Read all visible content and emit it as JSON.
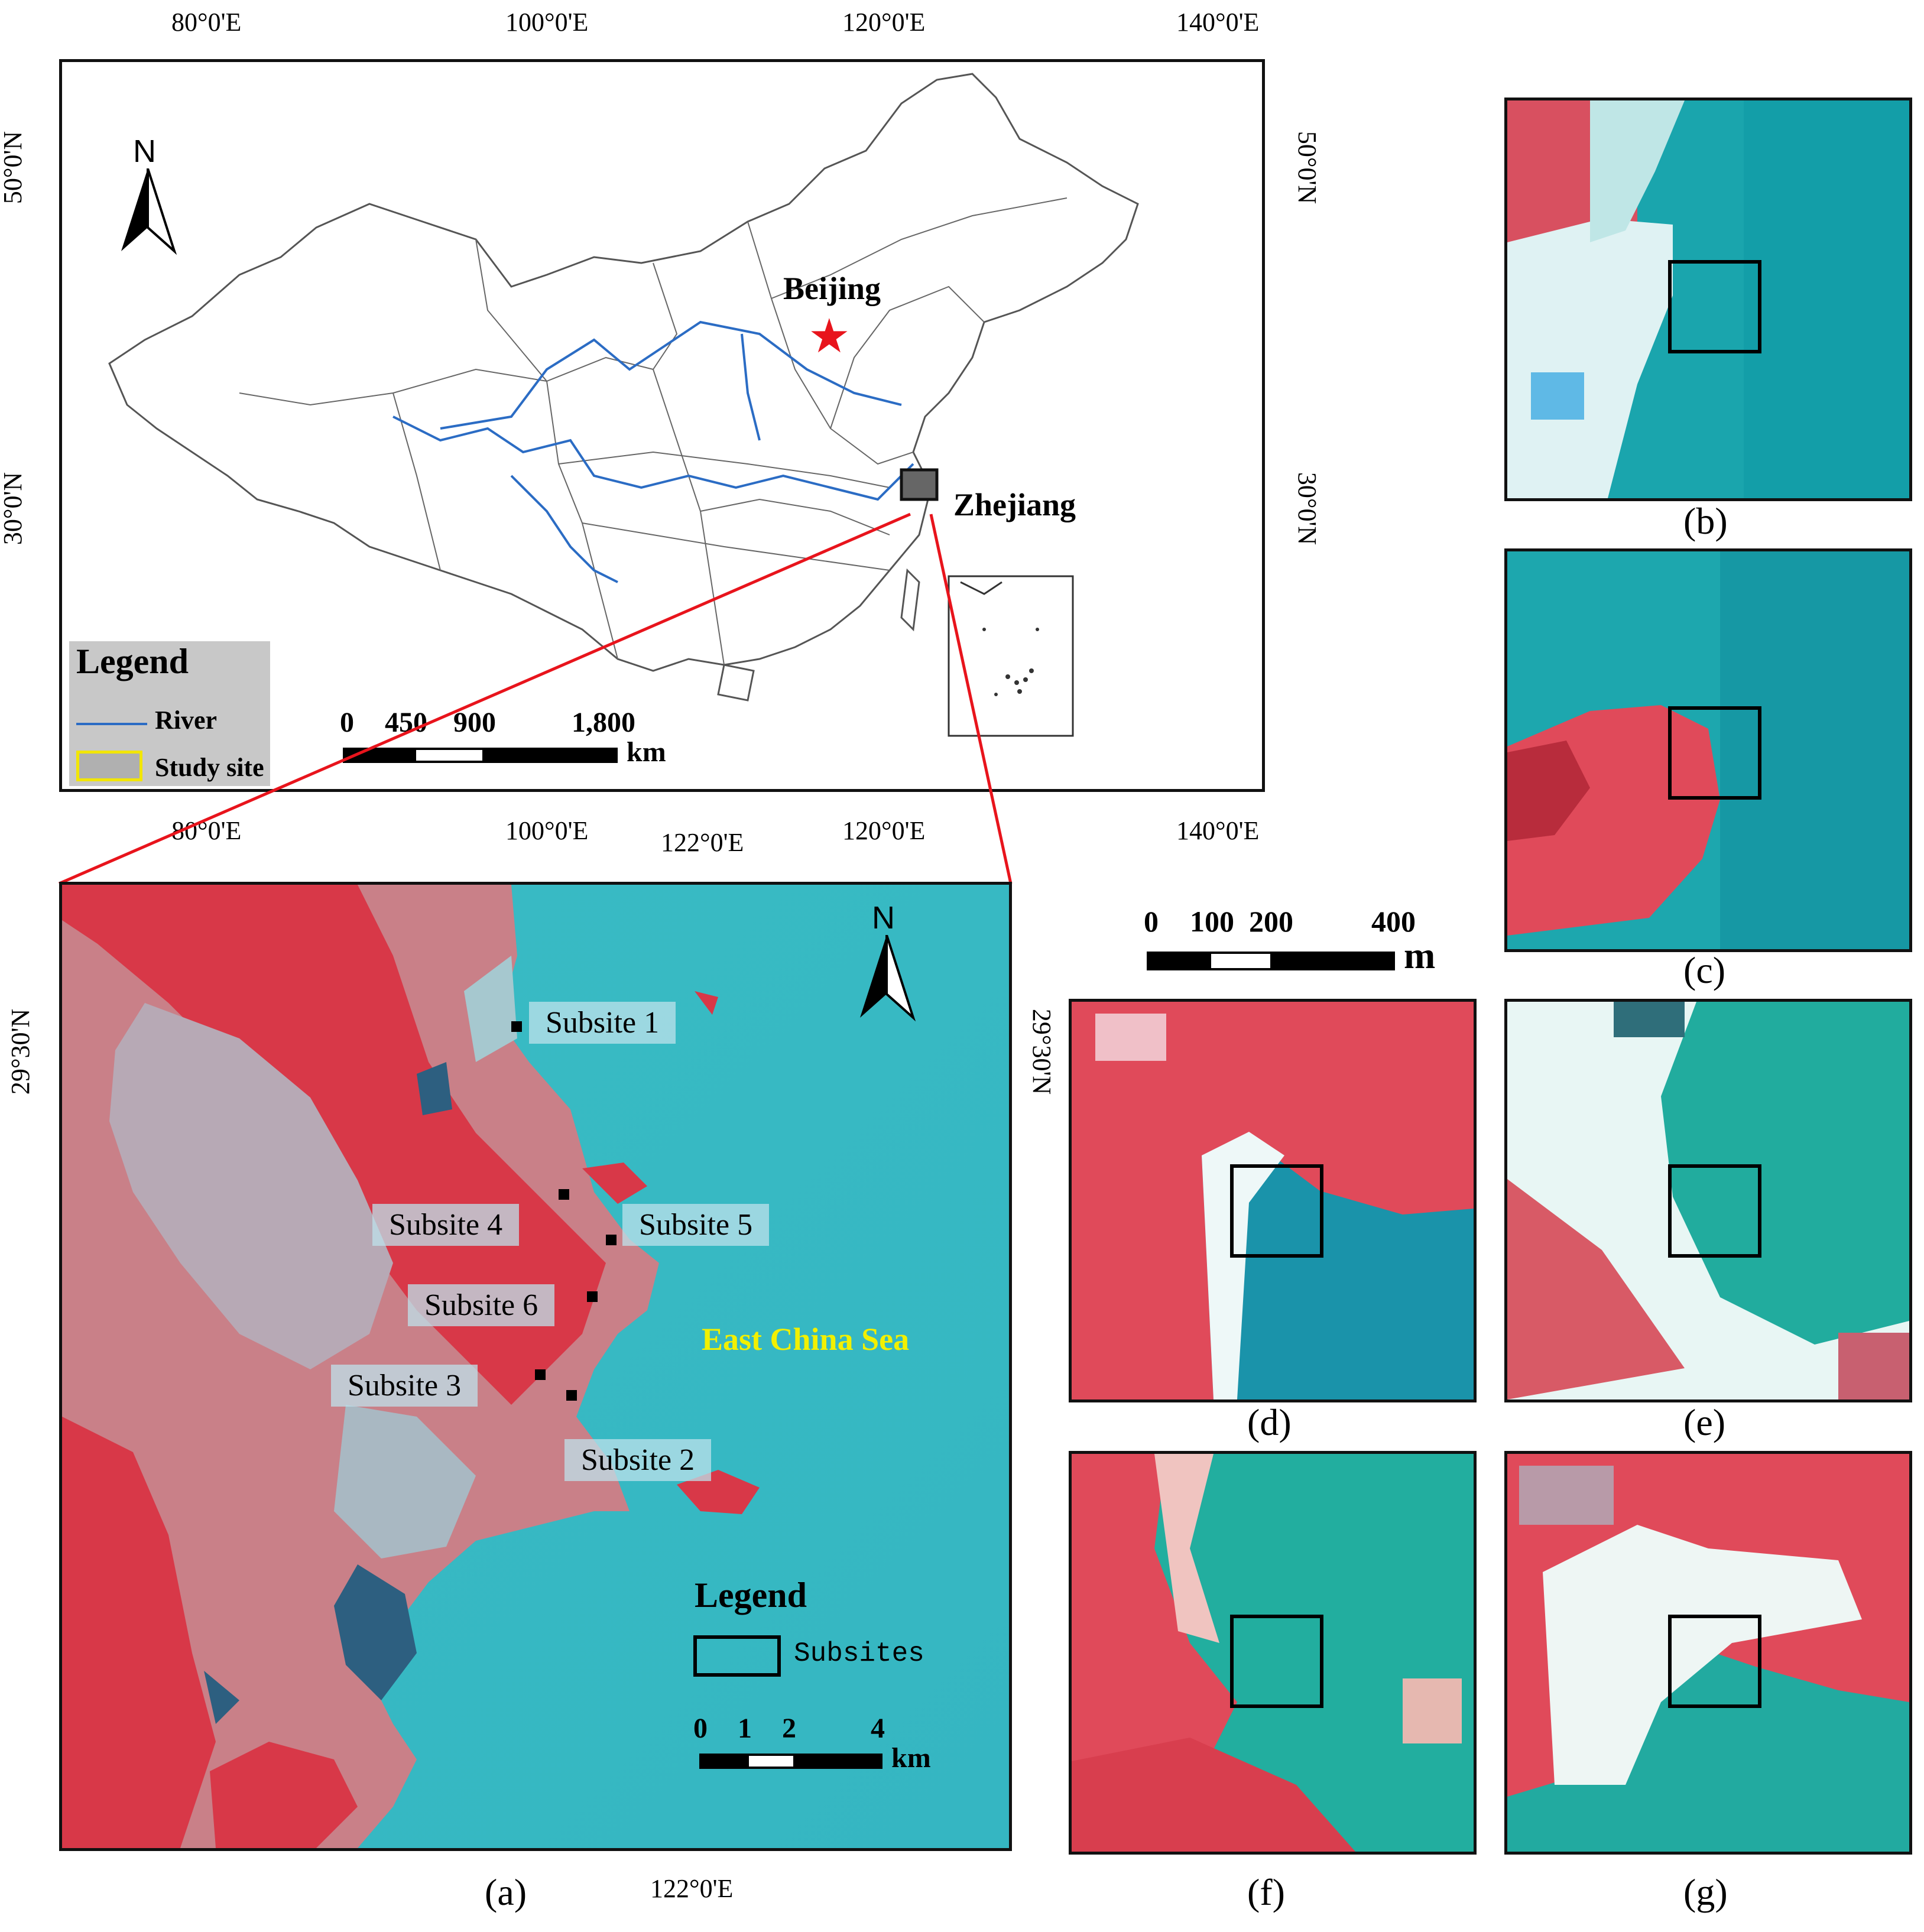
{
  "overview_map": {
    "top_ticks": [
      "80°0'E",
      "100°0'E",
      "120°0'E",
      "140°0'E"
    ],
    "bottom_ticks": [
      "80°0'E",
      "100°0'E",
      "120°0'E",
      "140°0'E"
    ],
    "left_ticks": [
      "50°0'N",
      "30°0'N"
    ],
    "right_ticks": [
      "50°0'N",
      "30°0'N"
    ],
    "north_label": "N",
    "city_label": "Beijing",
    "province_label": "Zhejiang",
    "legend": {
      "title": "Legend",
      "river_label": "River",
      "study_site_label": "Study site",
      "river_color": "#2b6cc4",
      "study_site_color": "#f2e600"
    },
    "scale": {
      "labels": [
        "0",
        "450",
        "900",
        "1,800"
      ],
      "unit": "km"
    },
    "capital_star_color": "#e8141c"
  },
  "study_area": {
    "top_tick": "122°0'E",
    "bottom_tick": "122°0'E",
    "left_tick": "29°30'N",
    "right_tick": "29°30'N",
    "north_label": "N",
    "sea_label": "East China Sea",
    "sea_label_color": "#f2f000",
    "subsites": [
      {
        "label": "Subsite 1"
      },
      {
        "label": "Subsite 2"
      },
      {
        "label": "Subsite 3"
      },
      {
        "label": "Subsite 4"
      },
      {
        "label": "Subsite 5"
      },
      {
        "label": "Subsite 6"
      }
    ],
    "legend": {
      "title": "Legend",
      "subsites_label": "Subsites"
    },
    "scale": {
      "labels": [
        "0",
        "1",
        "2",
        "4"
      ],
      "unit": "km"
    },
    "caption": "(a)"
  },
  "detail_scale": {
    "labels": [
      "0",
      "100",
      "200",
      "400"
    ],
    "unit": "m"
  },
  "detail_panels": [
    {
      "caption": "(b)"
    },
    {
      "caption": "(c)"
    },
    {
      "caption": "(d)"
    },
    {
      "caption": "(e)"
    },
    {
      "caption": "(f)"
    },
    {
      "caption": "(g)"
    }
  ],
  "colors": {
    "land_red": "#e04a5a",
    "water_teal": "#22b0b8",
    "connector_red": "#e8141c"
  }
}
